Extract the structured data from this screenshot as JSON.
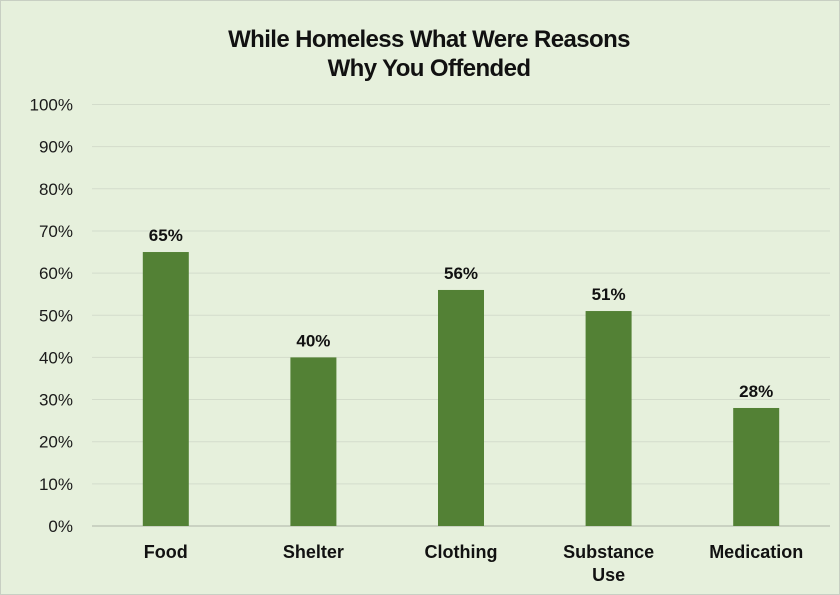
{
  "chart_data": {
    "type": "bar",
    "title_lines": [
      "While Homeless What Were Reasons",
      "Why You Offended"
    ],
    "categories": [
      [
        "Food"
      ],
      [
        "Shelter"
      ],
      [
        "Clothing"
      ],
      [
        "Substance",
        "Use"
      ],
      [
        "Medication"
      ]
    ],
    "values": [
      65,
      40,
      56,
      51,
      28
    ],
    "data_labels": [
      "65%",
      "40%",
      "56%",
      "51%",
      "28%"
    ],
    "yticks": [
      "0%",
      "10%",
      "20%",
      "30%",
      "40%",
      "50%",
      "60%",
      "70%",
      "80%",
      "90%",
      "100%"
    ],
    "ylim": [
      0,
      100
    ],
    "grid": true,
    "legend": "none"
  },
  "colors": {
    "background": "#e6f0dc",
    "bar": "#538135",
    "grid": "#d3dccb",
    "axis": "#b9bfb3"
  }
}
